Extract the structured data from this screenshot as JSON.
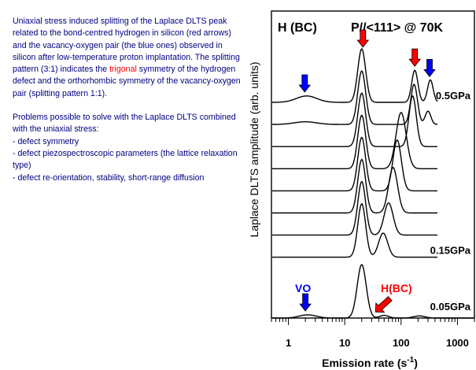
{
  "description": {
    "paragraph1": {
      "before": "Uniaxial stress induced splitting of the Laplace DLTS peak related to the bond-centred hydrogen in silicon (red arrows) and the vacancy-oxygen pair (the blue ones) observed in silicon after low-temperature proton implantation. The splitting pattern (3:1) indicates the ",
      "highlight": "trigonal",
      "after": " symmetry of the hydrogen defect and the orthorhombic symmetry of the vacancy-oxygen pair (splitting pattern 1:1)."
    },
    "paragraph2": "Problems possible to solve with the Laplace DLTS combined with the uniaxial stress:",
    "items": [
      "- defect symmetry",
      "- defect piezospectroscopic parameters (the lattice relaxation type)",
      "- defect re-orientation, stability, short-range diffusion"
    ]
  },
  "colors": {
    "text": "#000080",
    "highlight": "#ff0000",
    "red_arrow": "#ff0000",
    "blue_arrow": "#0000ff",
    "curve": "#000000"
  },
  "chart_data": {
    "type": "line",
    "title_left": "H (BC)",
    "title_right": "P//<111> @ 70K",
    "xlabel": "Emission rate (s",
    "xlabel_sup": "-1",
    "xlabel_close": ")",
    "ylabel": "Laplace DLTS amplitude (arb. units)",
    "x_scale": "log",
    "xlim": [
      0.5,
      2000
    ],
    "x_ticks": [
      1,
      10,
      100,
      1000
    ],
    "x_tick_labels": [
      "1",
      "10",
      "100",
      "1000"
    ],
    "pressure_labels": [
      {
        "text": "0.5GPa",
        "trace": 0
      },
      {
        "text": "0.15GPa",
        "trace": 7
      },
      {
        "text": "0.05GPa",
        "trace": 8
      }
    ],
    "annotations": {
      "vo": "VO",
      "hbc": "H(BC)"
    },
    "traces": [
      {
        "peaks": [
          [
            2.1,
            0.12,
            0.18
          ],
          [
            20,
            1.0,
            0.07
          ],
          [
            175,
            0.6,
            0.055
          ],
          [
            330,
            0.42,
            0.05
          ]
        ]
      },
      {
        "peaks": [
          [
            2.0,
            0.05,
            0.2
          ],
          [
            20,
            1.0,
            0.07
          ],
          [
            170,
            0.75,
            0.06
          ],
          [
            300,
            0.25,
            0.05
          ]
        ]
      },
      {
        "peaks": [
          [
            20,
            1.0,
            0.07
          ],
          [
            160,
            0.95,
            0.065
          ]
        ]
      },
      {
        "peaks": [
          [
            20,
            1.0,
            0.07
          ],
          [
            100,
            1.05,
            0.09
          ]
        ]
      },
      {
        "peaks": [
          [
            20,
            1.0,
            0.07
          ],
          [
            85,
            0.95,
            0.075
          ]
        ]
      },
      {
        "peaks": [
          [
            20,
            1.0,
            0.07
          ],
          [
            72,
            0.85,
            0.08
          ]
        ]
      },
      {
        "peaks": [
          [
            20,
            1.0,
            0.07
          ],
          [
            60,
            0.6,
            0.08
          ]
        ]
      },
      {
        "peaks": [
          [
            20,
            1.0,
            0.07
          ],
          [
            48,
            0.45,
            0.08
          ]
        ]
      },
      {
        "peaks": [
          [
            2.2,
            0.06,
            0.15
          ],
          [
            20,
            1.0,
            0.08
          ],
          [
            50,
            0.05,
            0.08
          ],
          [
            210,
            0.04,
            0.1
          ]
        ]
      }
    ],
    "arrows": [
      {
        "x": 21,
        "color": "red",
        "trace": 0,
        "label": "H-BC peak"
      },
      {
        "x": 175,
        "color": "red",
        "trace": 0,
        "label": "H-BC split peak"
      },
      {
        "x": 1.95,
        "color": "blue",
        "trace": 0,
        "label": "VO peak"
      },
      {
        "x": 320,
        "color": "blue",
        "trace": 0,
        "label": "VO split peak"
      },
      {
        "x": 2.0,
        "color": "blue",
        "trace": 8,
        "label": "VO"
      },
      {
        "x": 28,
        "color": "red",
        "trace": 8,
        "label": "H(BC)"
      }
    ]
  }
}
